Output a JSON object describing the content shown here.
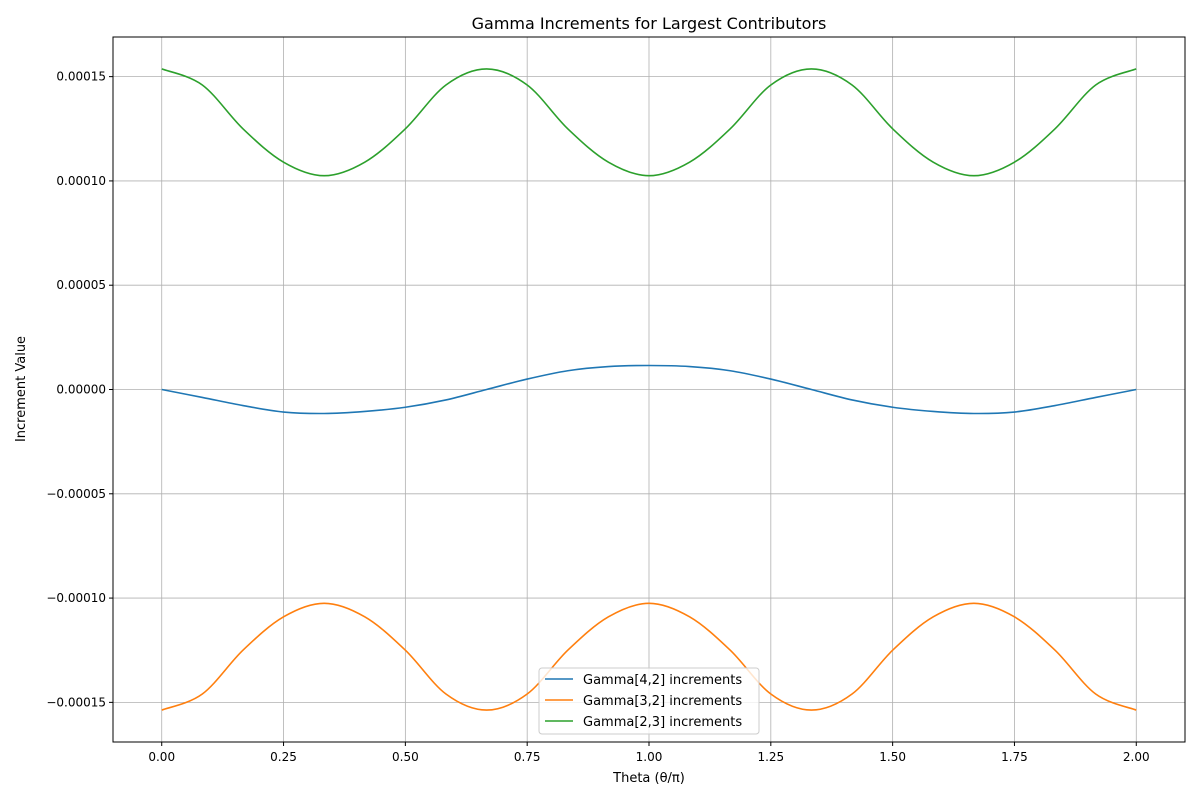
{
  "chart_data": {
    "type": "line",
    "title": "Gamma Increments for Largest Contributors",
    "xlabel": "Theta (θ/π)",
    "ylabel": "Increment Value",
    "xlim": [
      -0.1,
      2.1
    ],
    "ylim": [
      -0.000169,
      0.000169
    ],
    "x_ticks": [
      0.0,
      0.25,
      0.5,
      0.75,
      1.0,
      1.25,
      1.5,
      1.75,
      2.0
    ],
    "x_tick_labels": [
      "0.00",
      "0.25",
      "0.50",
      "0.75",
      "1.00",
      "1.25",
      "1.50",
      "1.75",
      "2.00"
    ],
    "y_ticks": [
      -0.00015,
      -0.0001,
      -5e-05,
      0,
      5e-05,
      0.0001,
      0.00015
    ],
    "y_tick_labels": [
      "−0.00015",
      "−0.00010",
      "−0.00005",
      "0.00000",
      "0.00005",
      "0.00010",
      "0.00015"
    ],
    "grid": true,
    "legend_position": "bottom-center",
    "x": [
      0.0,
      0.0833,
      0.1667,
      0.25,
      0.3333,
      0.4167,
      0.5,
      0.5833,
      0.6667,
      0.75,
      0.8333,
      0.9167,
      1.0,
      1.0833,
      1.1667,
      1.25,
      1.3333,
      1.4167,
      1.5,
      1.5833,
      1.6667,
      1.75,
      1.8333,
      1.9167,
      2.0
    ],
    "series": [
      {
        "name": "Gamma[4,2] increments",
        "color": "#1f77b4",
        "values": [
          0.0,
          -3.8e-06,
          -7.7e-06,
          -1.08e-05,
          -1.15e-05,
          -1.05e-05,
          -8.5e-06,
          -5e-06,
          0.0,
          5e-06,
          9e-06,
          1.1e-05,
          1.15e-05,
          1.1e-05,
          9e-06,
          5e-06,
          0.0,
          -5e-06,
          -8.5e-06,
          -1.05e-05,
          -1.15e-05,
          -1.08e-05,
          -7.7e-06,
          -3.8e-06,
          0.0
        ]
      },
      {
        "name": "Gamma[3,2] increments",
        "color": "#ff7f0e",
        "values": [
          -0.0001537,
          -0.000146,
          -0.000125,
          -0.000109,
          -0.0001025,
          -0.000109,
          -0.000125,
          -0.000146,
          -0.0001537,
          -0.000146,
          -0.000125,
          -0.000109,
          -0.0001025,
          -0.000109,
          -0.000125,
          -0.000146,
          -0.0001537,
          -0.000146,
          -0.000125,
          -0.000109,
          -0.0001025,
          -0.000109,
          -0.000125,
          -0.000146,
          -0.0001537
        ]
      },
      {
        "name": "Gamma[2,3] increments",
        "color": "#2ca02c",
        "values": [
          0.0001537,
          0.000146,
          0.000125,
          0.000109,
          0.0001025,
          0.000109,
          0.000125,
          0.000146,
          0.0001537,
          0.000146,
          0.000125,
          0.000109,
          0.0001025,
          0.000109,
          0.000125,
          0.000146,
          0.0001537,
          0.000146,
          0.000125,
          0.000109,
          0.0001025,
          0.000109,
          0.000125,
          0.000146,
          0.0001537
        ]
      }
    ]
  }
}
